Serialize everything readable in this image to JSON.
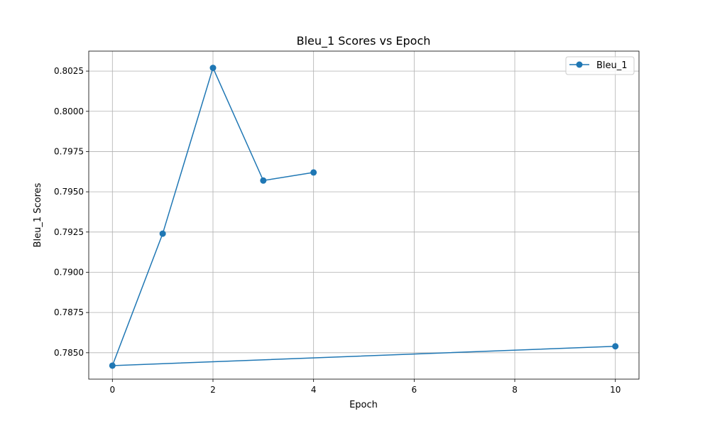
{
  "chart_data": {
    "type": "line",
    "title": "Bleu_1 Scores vs Epoch",
    "xlabel": "Epoch",
    "ylabel": "Bleu_1 Scores",
    "xlim": [
      -0.47,
      10.47
    ],
    "ylim": [
      0.78336,
      0.80374
    ],
    "xticks": [
      0,
      2,
      4,
      6,
      8,
      10
    ],
    "yticks": [
      0.785,
      0.7875,
      0.79,
      0.7925,
      0.795,
      0.7975,
      0.8,
      0.8025
    ],
    "ytick_labels": [
      "0.7850",
      "0.7875",
      "0.7900",
      "0.7925",
      "0.7950",
      "0.7975",
      "0.8000",
      "0.8025"
    ],
    "grid": true,
    "legend_position": "top-right",
    "series": [
      {
        "name": "Bleu_1",
        "color": "#1f77b4",
        "marker": "circle",
        "points": [
          {
            "x": 10,
            "y": 0.7854
          },
          {
            "x": 0,
            "y": 0.7842
          },
          {
            "x": 1,
            "y": 0.7924
          },
          {
            "x": 2,
            "y": 0.8027
          },
          {
            "x": 3,
            "y": 0.7957
          },
          {
            "x": 4,
            "y": 0.7962
          }
        ]
      }
    ]
  }
}
